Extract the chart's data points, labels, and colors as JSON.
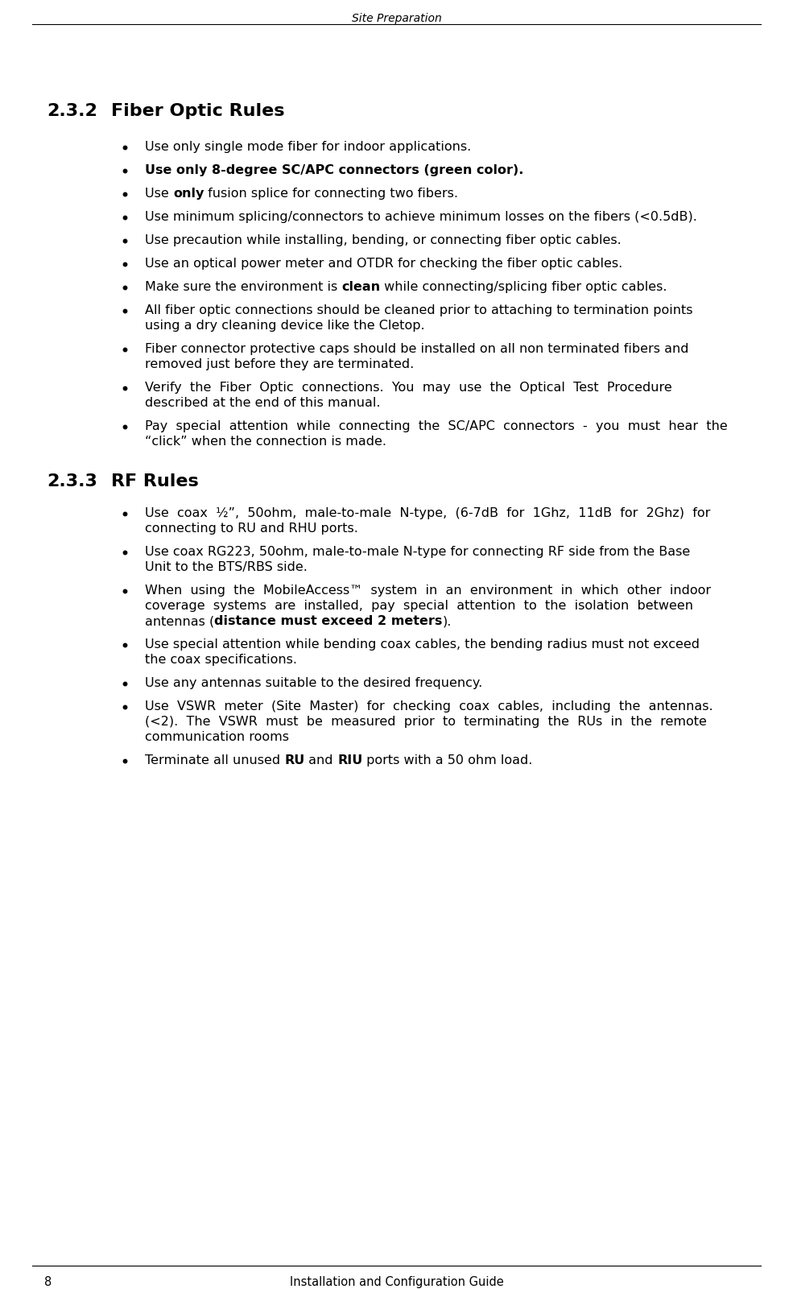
{
  "page_header": "Site Preparation",
  "page_number": "8",
  "page_footer": "Installation and Configuration Guide",
  "bg_color": "#ffffff",
  "text_color": "#000000",
  "section_232_num": "2.3.2",
  "section_232_title": "Fiber Optic Rules",
  "section_233_num": "2.3.3",
  "section_233_title": "RF Rules"
}
